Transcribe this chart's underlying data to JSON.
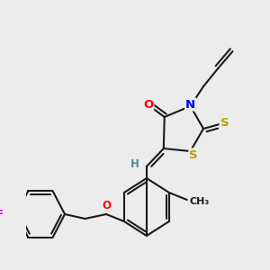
{
  "bg_color": "#ececec",
  "bond_color": "#1a1a1a",
  "bond_width": 1.5,
  "atom_colors": {
    "O": "#ff0000",
    "N": "#0000ee",
    "S": "#b8a000",
    "F": "#ee00ee",
    "H": "#4a9090",
    "C": "#1a1a1a"
  },
  "font_size": 8.5,
  "fig_width": 3.0,
  "fig_height": 3.0,
  "dpi": 100
}
